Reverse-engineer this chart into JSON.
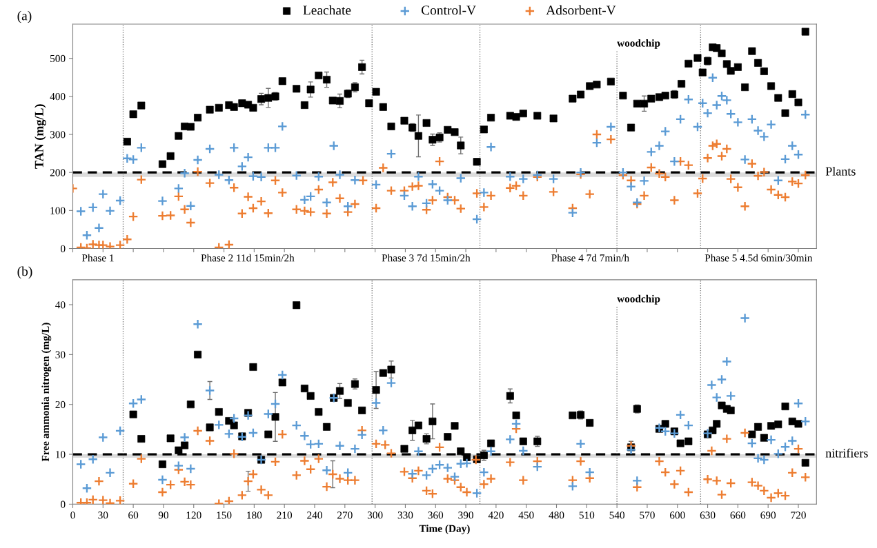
{
  "chart_data": [
    {
      "type": "scatter",
      "title": "(a)",
      "ylabel": "TAN (mg/L)",
      "legend": "top",
      "tick_labels": "y",
      "xlim": [
        0,
        738
      ],
      "xticks": [
        0,
        30,
        60,
        90,
        120,
        150,
        180,
        210,
        240,
        270,
        300,
        330,
        360,
        390,
        420,
        450,
        480,
        510,
        540,
        570,
        600,
        630,
        660,
        690,
        720
      ],
      "ylim": [
        0,
        590
      ],
      "yticks": [
        0,
        100,
        200,
        300,
        400,
        500
      ],
      "series": [
        {
          "name": "Leachate",
          "color": "#000000",
          "marker": "square",
          "x": [
            54,
            60,
            68,
            89,
            97,
            105,
            111,
            117,
            124,
            136,
            145,
            155,
            160,
            168,
            174,
            179,
            187,
            194,
            201,
            208,
            222,
            230,
            236,
            244,
            252,
            258,
            265,
            273,
            280,
            287,
            294,
            301,
            308,
            316,
            329,
            337,
            343,
            351,
            357,
            364,
            372,
            379,
            385,
            401,
            408,
            415,
            434,
            440,
            447,
            461,
            477,
            496,
            504,
            513,
            520,
            534,
            546,
            554,
            560,
            567,
            574,
            582,
            588,
            597,
            604,
            611,
            620,
            625,
            630,
            635,
            639,
            644,
            649,
            653,
            660,
            667,
            674,
            680,
            686,
            693,
            700,
            707,
            714,
            720,
            727
          ],
          "values": [
            281,
            353,
            376,
            222,
            243,
            296,
            321,
            320,
            344,
            365,
            370,
            377,
            372,
            382,
            378,
            370,
            393,
            396,
            400,
            440,
            420,
            377,
            418,
            455,
            444,
            389,
            388,
            407,
            424,
            477,
            382,
            412,
            372,
            321,
            336,
            318,
            296,
            330,
            286,
            292,
            312,
            306,
            271,
            228,
            313,
            344,
            349,
            346,
            355,
            349,
            342,
            394,
            405,
            427,
            431,
            439,
            402,
            318,
            381,
            381,
            394,
            398,
            402,
            405,
            433,
            486,
            501,
            463,
            493,
            529,
            527,
            513,
            485,
            467,
            477,
            424,
            519,
            488,
            466,
            427,
            396,
            356,
            406,
            384,
            570
          ],
          "errors": [
            null,
            null,
            null,
            null,
            null,
            null,
            null,
            null,
            null,
            null,
            null,
            null,
            null,
            null,
            null,
            null,
            15,
            25,
            10,
            null,
            null,
            null,
            20,
            null,
            20,
            null,
            18,
            10,
            12,
            18,
            null,
            null,
            null,
            null,
            null,
            10,
            55,
            null,
            15,
            12,
            null,
            null,
            22,
            8,
            null,
            null,
            null,
            null,
            null,
            null,
            null,
            null,
            null,
            null,
            null,
            null,
            null,
            null,
            null,
            20,
            null,
            null,
            null,
            10,
            null,
            null,
            null,
            null,
            10,
            null,
            null,
            null,
            null,
            null,
            null,
            null,
            null,
            null,
            null,
            null,
            null,
            null,
            null,
            null,
            null
          ]
        },
        {
          "name": "Control-V",
          "color": "#5b9bd5",
          "marker": "cross",
          "x": [
            8,
            14,
            20,
            26,
            30,
            37,
            47,
            54,
            60,
            68,
            89,
            105,
            111,
            117,
            124,
            136,
            145,
            155,
            160,
            168,
            174,
            179,
            187,
            194,
            201,
            208,
            222,
            230,
            236,
            244,
            252,
            259,
            265,
            273,
            280,
            301,
            316,
            329,
            337,
            343,
            351,
            357,
            364,
            372,
            385,
            401,
            408,
            415,
            434,
            447,
            461,
            477,
            496,
            504,
            520,
            534,
            546,
            554,
            560,
            567,
            574,
            582,
            588,
            597,
            603,
            611,
            620,
            625,
            630,
            635,
            639,
            644,
            649,
            653,
            660,
            667,
            674,
            680,
            686,
            693,
            700,
            707,
            714,
            720,
            727
          ],
          "values": [
            98,
            35,
            108,
            54,
            143,
            99,
            126,
            237,
            234,
            265,
            125,
            158,
            198,
            112,
            233,
            262,
            194,
            180,
            265,
            216,
            240,
            190,
            188,
            265,
            265,
            321,
            192,
            128,
            137,
            189,
            121,
            270,
            194,
            111,
            180,
            168,
            249,
            139,
            111,
            189,
            119,
            169,
            152,
            127,
            185,
            77,
            147,
            267,
            189,
            183,
            193,
            183,
            94,
            200,
            278,
            320,
            200,
            163,
            121,
            178,
            254,
            270,
            308,
            229,
            340,
            392,
            320,
            382,
            356,
            449,
            377,
            401,
            390,
            354,
            332,
            234,
            340,
            310,
            294,
            326,
            179,
            235,
            270,
            247,
            352
          ]
        },
        {
          "name": "Adsorbent-V",
          "color": "#ed7d31",
          "marker": "cross",
          "x": [
            0,
            8,
            14,
            20,
            26,
            30,
            37,
            47,
            54,
            60,
            68,
            89,
            97,
            105,
            111,
            117,
            124,
            136,
            145,
            155,
            160,
            168,
            174,
            179,
            187,
            194,
            201,
            208,
            222,
            230,
            236,
            244,
            252,
            258,
            265,
            273,
            280,
            288,
            301,
            308,
            316,
            329,
            337,
            343,
            351,
            357,
            364,
            372,
            379,
            385,
            401,
            408,
            415,
            434,
            440,
            447,
            461,
            477,
            496,
            504,
            513,
            520,
            534,
            546,
            554,
            560,
            567,
            574,
            582,
            588,
            597,
            603,
            611,
            620,
            625,
            630,
            635,
            639,
            644,
            649,
            653,
            660,
            667,
            674,
            680,
            686,
            693,
            700,
            707,
            714,
            720,
            727
          ],
          "values": [
            158,
            3,
            1,
            11,
            9,
            9,
            5,
            9,
            24,
            84,
            181,
            86,
            87,
            137,
            103,
            68,
            202,
            172,
            3,
            10,
            160,
            92,
            136,
            106,
            124,
            93,
            179,
            147,
            103,
            99,
            96,
            155,
            92,
            174,
            132,
            96,
            117,
            179,
            106,
            212,
            152,
            152,
            163,
            165,
            102,
            127,
            229,
            135,
            127,
            105,
            145,
            109,
            139,
            159,
            165,
            139,
            188,
            149,
            106,
            195,
            143,
            300,
            287,
            193,
            179,
            117,
            139,
            213,
            197,
            188,
            127,
            229,
            219,
            145,
            184,
            238,
            270,
            275,
            243,
            262,
            183,
            161,
            111,
            223,
            191,
            201,
            155,
            141,
            135,
            176,
            171,
            193
          ]
        }
      ],
      "ref_lines": [
        {
          "axis": "y",
          "value": 200,
          "label": "Plants",
          "color": "#000000",
          "line_style": "dashed"
        },
        {
          "axis": "x",
          "value": 50,
          "color": "#808080",
          "line_style": "dotted"
        },
        {
          "axis": "x",
          "value": 297,
          "color": "#808080",
          "line_style": "dotted"
        },
        {
          "axis": "x",
          "value": 404,
          "color": "#808080",
          "line_style": "dotted"
        },
        {
          "axis": "x",
          "value": 540,
          "label": "woodchip",
          "color": "#808080",
          "line_style": "dotted"
        },
        {
          "axis": "x",
          "value": 623,
          "color": "#808080",
          "line_style": "dotted"
        }
      ],
      "bands": [
        {
          "axis": "y",
          "from": 188,
          "to": 200,
          "color": "#dcdcdc"
        }
      ],
      "annotations": [
        "Phase 1",
        "Phase 2 11d 15min/2h",
        "Phase 3 7d 15min/2h",
        "Phase 4 7d 7min/h",
        "Phase 5 4.5d 6min/30min"
      ]
    },
    {
      "type": "scatter",
      "title": "(b)",
      "xlabel": "Time (Day)",
      "ylabel": "Free ammonia nitrogen (mg/L)",
      "xlim": [
        0,
        738
      ],
      "xticks": [
        0,
        30,
        60,
        90,
        120,
        150,
        180,
        210,
        240,
        270,
        300,
        330,
        360,
        390,
        420,
        450,
        480,
        510,
        540,
        570,
        600,
        630,
        660,
        690,
        720
      ],
      "ylim": [
        0,
        45
      ],
      "yticks": [
        0,
        10,
        20,
        30,
        40
      ],
      "series": [
        {
          "color": "#000000",
          "marker": "square",
          "x": [
            60,
            68,
            89,
            97,
            105,
            111,
            117,
            124,
            136,
            145,
            155,
            160,
            168,
            174,
            179,
            187,
            194,
            201,
            208,
            222,
            230,
            236,
            244,
            252,
            259,
            265,
            273,
            280,
            287,
            301,
            308,
            316,
            329,
            337,
            343,
            351,
            357,
            372,
            379,
            385,
            391,
            401,
            408,
            415,
            434,
            440,
            447,
            461,
            496,
            504,
            513,
            554,
            560,
            582,
            588,
            597,
            603,
            611,
            630,
            635,
            639,
            644,
            649,
            653,
            674,
            680,
            686,
            693,
            700,
            707,
            714,
            720,
            727
          ],
          "values": [
            18.0,
            13.1,
            8.0,
            13.2,
            10.8,
            11.8,
            20.0,
            30.0,
            15.4,
            18.5,
            16.7,
            15.8,
            13.6,
            18.3,
            27.5,
            8.9,
            14.0,
            17.5,
            24.4,
            39.9,
            23.2,
            21.7,
            18.5,
            15.5,
            21.3,
            22.7,
            20.3,
            24.1,
            18.8,
            22.9,
            26.3,
            27.0,
            11.1,
            14.8,
            15.8,
            13.1,
            16.6,
            13.5,
            15.7,
            10.6,
            9.4,
            9.0,
            9.8,
            12.2,
            21.7,
            17.8,
            12.6,
            12.6,
            17.8,
            17.9,
            16.3,
            11.4,
            19.1,
            15.1,
            16.1,
            14.6,
            12.2,
            12.6,
            14.0,
            14.8,
            16.1,
            19.8,
            19.1,
            18.8,
            14.0,
            15.5,
            13.3,
            15.7,
            16.0,
            19.6,
            16.6,
            16.1,
            8.3
          ],
          "errors": [
            null,
            null,
            null,
            null,
            null,
            null,
            null,
            null,
            null,
            null,
            null,
            null,
            null,
            null,
            null,
            null,
            null,
            4.9,
            null,
            null,
            null,
            null,
            null,
            null,
            null,
            1.5,
            null,
            1,
            null,
            3.7,
            null,
            1.7,
            null,
            2,
            null,
            1,
            3.5,
            null,
            null,
            null,
            null,
            null,
            1,
            null,
            1.4,
            null,
            null,
            1,
            null,
            0.8,
            null,
            1.2,
            0.8,
            null,
            null,
            null,
            null,
            null,
            null,
            null,
            null,
            null,
            null,
            null,
            null,
            null,
            null,
            null,
            null,
            null,
            null,
            null,
            null
          ]
        },
        {
          "color": "#5b9bd5",
          "marker": "cross",
          "x": [
            8,
            14,
            20,
            30,
            37,
            47,
            60,
            68,
            89,
            105,
            111,
            117,
            124,
            136,
            145,
            155,
            160,
            168,
            174,
            179,
            187,
            194,
            201,
            208,
            222,
            230,
            236,
            244,
            252,
            259,
            265,
            273,
            280,
            287,
            301,
            308,
            316,
            337,
            343,
            351,
            357,
            364,
            372,
            379,
            385,
            391,
            401,
            408,
            415,
            434,
            440,
            447,
            461,
            496,
            504,
            513,
            554,
            560,
            582,
            588,
            597,
            603,
            611,
            630,
            634,
            639,
            644,
            649,
            653,
            667,
            674,
            680,
            686,
            693,
            700,
            707,
            714,
            720,
            727
          ],
          "values": [
            8.0,
            3.2,
            9.0,
            13.4,
            6.3,
            14.7,
            20.2,
            21.0,
            4.9,
            7.7,
            13.4,
            7.1,
            36.1,
            22.8,
            15.9,
            14.1,
            17.2,
            13.5,
            17.8,
            14.3,
            8.9,
            18.1,
            20.1,
            25.9,
            15.8,
            13.7,
            12.0,
            12.1,
            6.8,
            21.3,
            11.7,
            6.3,
            11.1,
            13.9,
            20.3,
            14.8,
            24.3,
            6.1,
            10.6,
            5.8,
            7.1,
            7.9,
            7.3,
            5.5,
            8.1,
            8.2,
            2.2,
            6.4,
            10.6,
            13.0,
            16.1,
            10.7,
            7.5,
            3.6,
            12.1,
            6.4,
            10.9,
            4.7,
            15.3,
            14.6,
            14.2,
            17.9,
            15.8,
            14.2,
            23.9,
            21.4,
            25.0,
            28.6,
            21.7,
            37.3,
            12.2,
            9.2,
            8.9,
            12.9,
            10.1,
            11.5,
            12.7,
            20.2,
            16.6
          ],
          "errors": [
            null,
            null,
            null,
            null,
            null,
            null,
            null,
            null,
            null,
            null,
            null,
            null,
            null,
            1.8,
            null,
            null,
            null,
            null,
            null,
            null,
            null,
            null,
            null,
            null,
            null,
            null,
            null,
            null,
            null,
            null,
            null,
            null,
            null,
            null,
            null,
            null,
            null,
            null,
            null,
            null,
            null,
            null,
            null,
            null,
            null,
            null,
            null,
            null,
            null,
            null,
            null,
            null,
            null,
            null,
            null,
            null,
            null,
            null,
            null,
            null,
            null,
            null,
            null,
            null,
            null,
            null,
            null,
            null,
            null,
            null,
            null,
            null,
            null,
            null,
            null,
            null,
            null,
            null,
            null
          ]
        },
        {
          "color": "#ed7d31",
          "marker": "cross",
          "x": [
            8,
            14,
            20,
            26,
            30,
            37,
            47,
            60,
            68,
            89,
            97,
            105,
            111,
            117,
            124,
            136,
            145,
            155,
            160,
            168,
            174,
            179,
            187,
            194,
            201,
            208,
            222,
            230,
            236,
            244,
            252,
            258,
            265,
            273,
            280,
            287,
            301,
            310,
            316,
            329,
            337,
            343,
            351,
            357,
            364,
            372,
            379,
            385,
            391,
            400,
            408,
            415,
            434,
            440,
            447,
            461,
            496,
            504,
            513,
            554,
            560,
            582,
            588,
            597,
            603,
            611,
            630,
            634,
            639,
            644,
            649,
            653,
            667,
            674,
            680,
            686,
            693,
            700,
            707,
            714,
            720,
            727
          ],
          "values": [
            0.3,
            0.3,
            0.9,
            4.6,
            0.8,
            0.2,
            0.7,
            4.1,
            9.1,
            2.4,
            3.9,
            6.9,
            4.5,
            3.9,
            14.7,
            12.7,
            0.1,
            0.6,
            10.1,
            1.8,
            4.6,
            6.0,
            2.9,
            1.8,
            8.5,
            14.0,
            5.8,
            8.7,
            7.0,
            9.1,
            3.5,
            6.0,
            5.1,
            4.8,
            4.8,
            14.8,
            12.1,
            11.9,
            10.2,
            6.5,
            5.2,
            6.7,
            2.7,
            2.1,
            11.4,
            5.1,
            4.8,
            3.4,
            2.4,
            8.9,
            4.0,
            5.1,
            8.4,
            15.1,
            4.8,
            8.6,
            4.8,
            8.6,
            5.2,
            11.7,
            3.4,
            8.6,
            6.4,
            4.0,
            6.7,
            2.4,
            5.0,
            10.7,
            4.7,
            1.9,
            13.1,
            4.2,
            14.3,
            4.4,
            3.7,
            2.7,
            1.3,
            2.2,
            1.7,
            6.3,
            11.1,
            5.4
          ],
          "errors": [
            null,
            null,
            null,
            null,
            null,
            null,
            null,
            null,
            null,
            null,
            null,
            null,
            null,
            null,
            null,
            null,
            null,
            null,
            null,
            null,
            2,
            null,
            null,
            null,
            null,
            null,
            null,
            null,
            null,
            null,
            null,
            2.7,
            null,
            null,
            null,
            null,
            null,
            null,
            null,
            null,
            null,
            null,
            null,
            null,
            null,
            null,
            null,
            null,
            null,
            null,
            null,
            null,
            null,
            null,
            null,
            null,
            null,
            null,
            null,
            null,
            null,
            null,
            null,
            null,
            null,
            null,
            null,
            null,
            null,
            null,
            null,
            null,
            null,
            null,
            null,
            null,
            null,
            null,
            null,
            null,
            null,
            null
          ]
        }
      ],
      "ref_lines": [
        {
          "axis": "y",
          "value": 10,
          "label": "nitrifiers",
          "color": "#000000",
          "line_style": "dashed"
        },
        {
          "axis": "x",
          "value": 50,
          "color": "#808080",
          "line_style": "dotted"
        },
        {
          "axis": "x",
          "value": 297,
          "color": "#808080",
          "line_style": "dotted"
        },
        {
          "axis": "x",
          "value": 404,
          "color": "#808080",
          "line_style": "dotted"
        },
        {
          "axis": "x",
          "value": 540,
          "label": "woodchip",
          "color": "#808080",
          "line_style": "dotted"
        },
        {
          "axis": "x",
          "value": 623,
          "color": "#808080",
          "line_style": "dotted"
        }
      ],
      "bands": [
        {
          "axis": "y",
          "from": 9.3,
          "to": 10,
          "color": "#dcdcdc"
        }
      ]
    }
  ]
}
